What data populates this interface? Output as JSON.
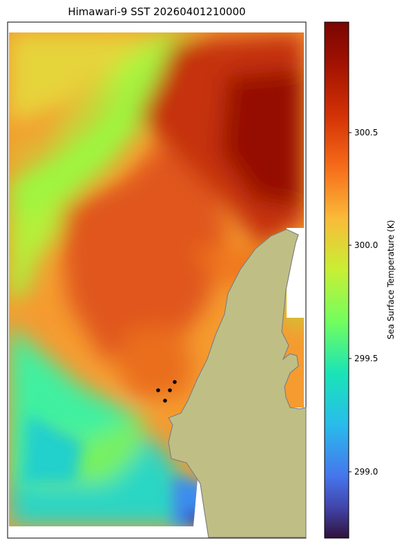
{
  "title": "Himawari-9 SST 20260401210000",
  "colorbar": {
    "label": "Sea Surface Temperature (K)",
    "ticks": [
      "299.0",
      "299.5",
      "300.0",
      "300.5"
    ],
    "colormap": "turbo"
  },
  "colors": {
    "land": "#bfbf85",
    "coastline": "#808080",
    "no_data": "#ffffff",
    "points": "#000000"
  },
  "markers": {
    "count": 4,
    "color": "#000000"
  }
}
